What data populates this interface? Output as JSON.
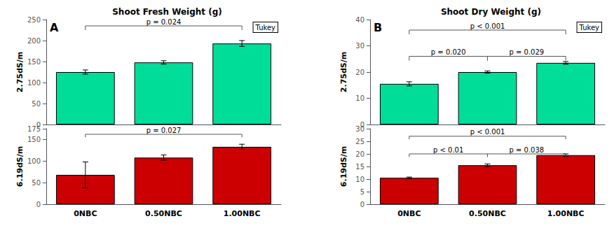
{
  "chart_data": [
    {
      "type": "bar",
      "title": "Shoot Fresh Weight (g)",
      "label": "A",
      "note": "Tukey",
      "ylabel": "2.75dS/m",
      "categories": [
        null,
        null,
        null
      ],
      "values": [
        125,
        148,
        193
      ],
      "errors": [
        5,
        4,
        7
      ],
      "color": "#00dd99",
      "ylim": [
        0,
        250
      ],
      "yticks": [
        0,
        50,
        100,
        150,
        200,
        250
      ],
      "grid": false,
      "brackets": [
        {
          "from": 0,
          "to": 2,
          "y": 235,
          "text": "p = 0.024",
          "color": "#555555"
        }
      ]
    },
    {
      "type": "bar",
      "ylabel": "6.19dS/m",
      "categories": [
        "0NBC",
        "0.50NBC",
        "1.00NBC"
      ],
      "values": [
        68,
        108,
        133
      ],
      "errors": [
        30,
        6,
        6
      ],
      "color": "#cc0000",
      "ylim": [
        0,
        175
      ],
      "yticks": [
        0,
        50,
        100,
        150
      ],
      "grid": false,
      "brackets": [
        {
          "from": 0,
          "to": 2,
          "y": 162,
          "text": "p = 0.027",
          "color": "#555555"
        }
      ]
    },
    {
      "type": "bar",
      "title": "Shoot Dry Weight (g)",
      "label": "B",
      "note": "Tukey",
      "ylabel": "2.75dS/m",
      "categories": [
        null,
        null,
        null
      ],
      "values": [
        15.5,
        20.0,
        23.5
      ],
      "errors": [
        0.8,
        0.4,
        0.5
      ],
      "color": "#00dd99",
      "ylim": [
        0,
        40
      ],
      "yticks": [
        0,
        10,
        20,
        30,
        40
      ],
      "grid": false,
      "brackets": [
        {
          "from": 0,
          "to": 1,
          "y": 26,
          "text": "p = 0.020",
          "color": "#555555"
        },
        {
          "from": 1,
          "to": 2,
          "y": 26,
          "text": "p = 0.029",
          "color": "#555555"
        },
        {
          "from": 0,
          "to": 2,
          "y": 36,
          "text": "p < 0.001",
          "color": "#555555"
        }
      ]
    },
    {
      "type": "bar",
      "ylabel": "6.19dS/m",
      "categories": [
        "0NBC",
        "0.50NBC",
        "1.00NBC"
      ],
      "values": [
        10.5,
        15.5,
        19.5
      ],
      "errors": [
        0.3,
        0.5,
        0.5
      ],
      "color": "#cc0000",
      "ylim": [
        0,
        30
      ],
      "yticks": [
        0,
        5,
        10,
        15,
        20,
        25,
        30
      ],
      "grid": false,
      "brackets": [
        {
          "from": 0,
          "to": 1,
          "y": 20,
          "text": "p < 0.01",
          "color": "#555555"
        },
        {
          "from": 1,
          "to": 2,
          "y": 20,
          "text": "p = 0.038",
          "color": "#555555"
        },
        {
          "from": 0,
          "to": 2,
          "y": 27,
          "text": "p < 0.001",
          "color": "#555555"
        }
      ]
    }
  ]
}
